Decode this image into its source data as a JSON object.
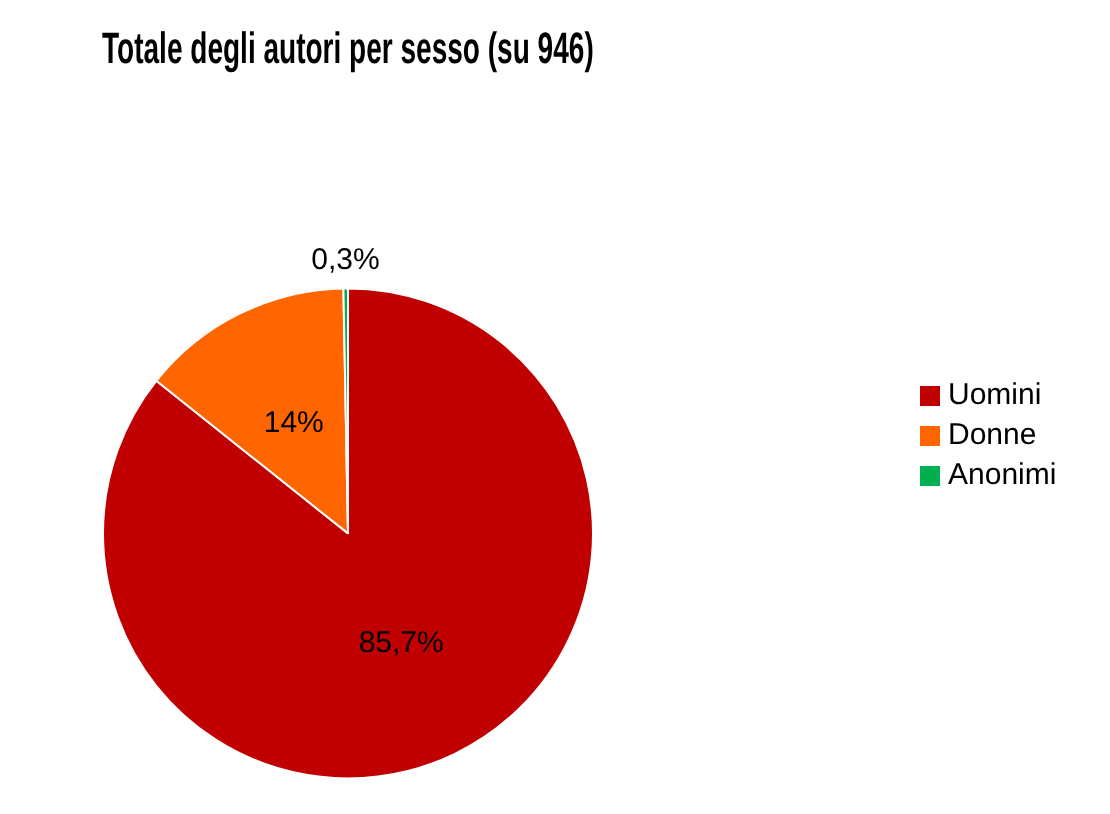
{
  "chart_data": {
    "type": "pie",
    "title": "Totale degli autori per sesso (su 946)",
    "categories": [
      "Uomini",
      "Donne",
      "Anonimi"
    ],
    "values": [
      85.7,
      14,
      0.3
    ],
    "colors": [
      "#c00000",
      "#ff6600",
      "#00b050"
    ],
    "value_labels": [
      "85,7%",
      "14%",
      "0,3%"
    ],
    "legend": "right"
  }
}
